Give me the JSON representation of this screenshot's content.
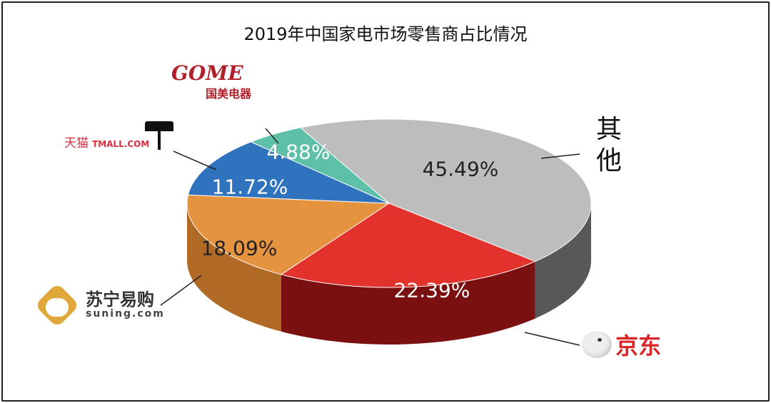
{
  "chart_data": {
    "type": "pie",
    "title": "2019年中国家电市场零售商占比情况",
    "style": "3d",
    "slices": [
      {
        "name": "其他",
        "value": 45.49,
        "label": "45.49%",
        "color": "#bdbdbd",
        "side": "#585858",
        "text_color": "#222222"
      },
      {
        "name": "京东",
        "value": 22.39,
        "label": "22.39%",
        "color": "#e2322b",
        "side": "#7a1010",
        "text_color": "#ffffff"
      },
      {
        "name": "苏宁易购",
        "value": 18.09,
        "label": "18.09%",
        "color": "#e69340",
        "side": "#b06a26",
        "text_color": "#222222"
      },
      {
        "name": "天猫",
        "value": 11.72,
        "label": "11.72%",
        "color": "#2f72bd",
        "side": "#1e4f86",
        "text_color": "#ffffff"
      },
      {
        "name": "国美电器",
        "value": 4.88,
        "label": "4.88%",
        "color": "#5ec0a8",
        "side": "#3b8c78",
        "text_color": "#ffffff"
      }
    ]
  },
  "brands": {
    "other": "其他",
    "jd": "京东",
    "suning_cn": "苏宁易购",
    "suning_en": "suning.com",
    "tmall": "天猫",
    "tmall_en": "TMALL.COM",
    "gome_en": "GOME",
    "gome_cn": "国美电器"
  }
}
